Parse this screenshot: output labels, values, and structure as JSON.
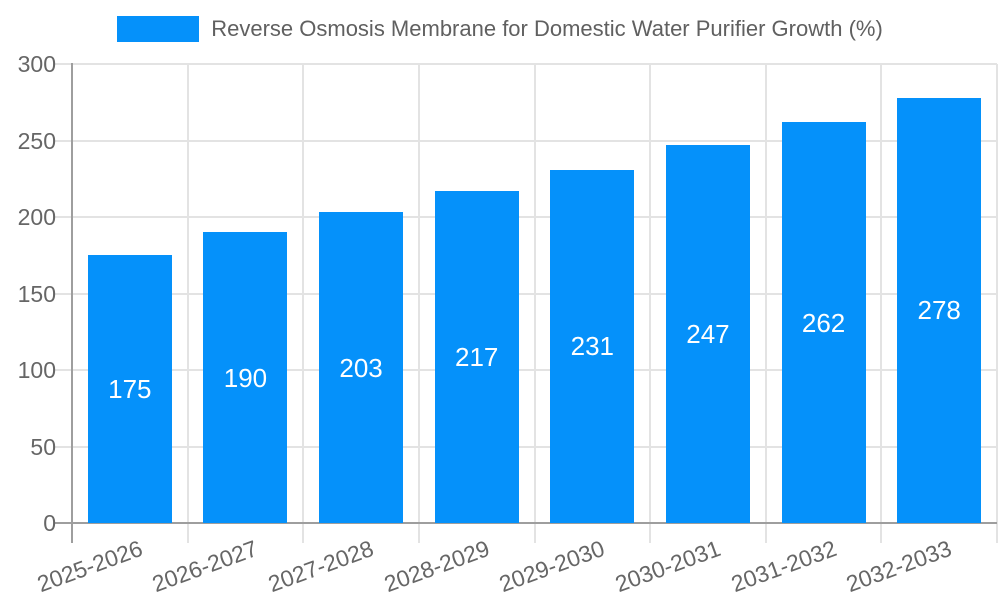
{
  "chart_data": {
    "type": "bar",
    "title": "Reverse Osmosis Membrane for Domestic Water Purifier Growth (%)",
    "legend_label": "Reverse Osmosis Membrane for Domestic Water Purifier Growth (%)",
    "legend_position": "top",
    "categories": [
      "2025-2026",
      "2026-2027",
      "2027-2028",
      "2028-2029",
      "2029-2030",
      "2030-2031",
      "2031-2032",
      "2032-2033"
    ],
    "values": [
      175,
      190,
      203,
      217,
      231,
      247,
      262,
      278
    ],
    "value_labels": [
      "175",
      "190",
      "203",
      "217",
      "231",
      "247",
      "262",
      "278"
    ],
    "xlabel": "",
    "ylabel": "",
    "ylim": [
      0,
      300
    ],
    "yticks": [
      0,
      50,
      100,
      150,
      200,
      250,
      300
    ],
    "grid": true,
    "x_label_rotation_deg": -20
  },
  "colors": {
    "bar": "#0591fa",
    "grid": "#e3e3e3",
    "axis": "#9e9e9e",
    "tick_text": "#666666",
    "legend_text": "#606060",
    "value_label": "#ffffff",
    "background": "#ffffff"
  }
}
